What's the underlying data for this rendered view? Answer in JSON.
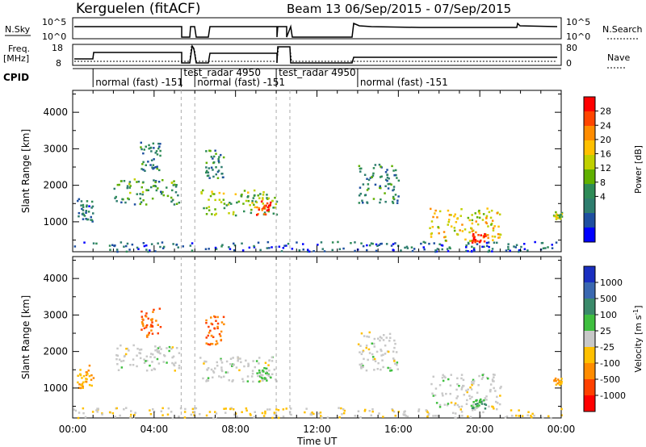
{
  "header": {
    "station": "Kerguelen (fitACF)",
    "beam_date": "Beam 13   06/Sep/2015 - 07/Sep/2015"
  },
  "sky_panel": {
    "left_label": "N.Sky",
    "right_label": "N.Search",
    "left_ticks": [
      "10^5",
      "10^0"
    ],
    "right_ticks": [
      "10^5",
      "10^0"
    ]
  },
  "freq_panel": {
    "left_label_1": "Freq.",
    "left_label_2": "[MHz]",
    "right_label": "Nave",
    "left_ticks": [
      "18",
      "8"
    ],
    "right_ticks": [
      "80",
      "0"
    ]
  },
  "cpid": {
    "label": "CPID",
    "segments": [
      "normal (fast) -151",
      "test_radar 4950",
      "normal (fast) -151",
      "test_radar 4950",
      "normal (fast) -151"
    ]
  },
  "y_ticks": [
    "4000",
    "3000",
    "2000",
    "1000"
  ],
  "y_label": "Slant Range [km]",
  "x_label": "Time UT",
  "x_ticks": [
    "00:00",
    "04:00",
    "08:00",
    "12:00",
    "16:00",
    "20:00",
    "00:00"
  ],
  "power_colorbar": {
    "label": "Power [dB]",
    "ticks": [
      "28",
      "24",
      "20",
      "16",
      "12",
      "8",
      "4"
    ],
    "colors": [
      "#ff0000",
      "#ff4500",
      "#ff8c00",
      "#ffc000",
      "#c0d000",
      "#60b000",
      "#2e8b57",
      "#2e7d6e",
      "#1e4fa0",
      "#0000ff"
    ]
  },
  "velocity_colorbar": {
    "label": "Velocity [m s^-1]",
    "ticks": [
      "1000",
      "500",
      "100",
      "25",
      "-25",
      "-100",
      "-500",
      "-1000"
    ],
    "colors": [
      "#1a2fc0",
      "#3a68b0",
      "#3a8a6a",
      "#3fbf3f",
      "#c8c8c8",
      "#ffc000",
      "#ff8c00",
      "#ff4000",
      "#ff0000"
    ]
  },
  "chart_data": {
    "type": "heatmap",
    "xlabel": "Time UT",
    "ylabel": "Slant Range [km]",
    "xlim": [
      0,
      24
    ],
    "ylim": [
      180,
      4600
    ],
    "dashed_times": [
      5.33,
      6.0,
      10.0,
      10.67
    ],
    "cpid_segments": [
      {
        "t0": 1.0,
        "t1": 5.33,
        "label": "normal (fast) -151"
      },
      {
        "t0": 5.33,
        "t1": 6.0,
        "label": "test_radar 4950"
      },
      {
        "t0": 6.0,
        "t1": 10.0,
        "label": "normal (fast) -151"
      },
      {
        "t0": 10.0,
        "t1": 10.67,
        "label": "test_radar 4950"
      },
      {
        "t0": 14.0,
        "t1": 24.0,
        "label": "normal (fast) -151"
      }
    ],
    "echo_regions": [
      {
        "t0": 0.2,
        "t1": 1.0,
        "r0": 1000,
        "r1": 1650,
        "power": 6,
        "velocity": -100
      },
      {
        "t0": 2.0,
        "t1": 5.2,
        "r0": 1500,
        "r1": 2200,
        "power": 10,
        "velocity": 0
      },
      {
        "t0": 3.3,
        "t1": 4.3,
        "r0": 2400,
        "r1": 3200,
        "power": 8,
        "velocity": -500
      },
      {
        "t0": 6.2,
        "t1": 10.0,
        "r0": 1200,
        "r1": 1900,
        "power": 14,
        "velocity": 0
      },
      {
        "t0": 6.5,
        "t1": 7.4,
        "r0": 2200,
        "r1": 3000,
        "power": 8,
        "velocity": -500
      },
      {
        "t0": 9.0,
        "t1": 9.7,
        "r0": 1200,
        "r1": 1600,
        "power": 26,
        "velocity": 25
      },
      {
        "t0": 14.0,
        "t1": 16.0,
        "r0": 1500,
        "r1": 2600,
        "power": 8,
        "velocity": 0
      },
      {
        "t0": 17.5,
        "t1": 21.0,
        "r0": 500,
        "r1": 1400,
        "power": 18,
        "velocity": 0
      },
      {
        "t0": 19.5,
        "t1": 20.3,
        "r0": 450,
        "r1": 700,
        "power": 28,
        "velocity": 100
      },
      {
        "t0": 23.6,
        "t1": 24.0,
        "r0": 1100,
        "r1": 1300,
        "power": 14,
        "velocity": -100
      },
      {
        "t0": 0.0,
        "t1": 24.0,
        "r0": 200,
        "r1": 480,
        "power": 5,
        "velocity": -25
      }
    ]
  }
}
